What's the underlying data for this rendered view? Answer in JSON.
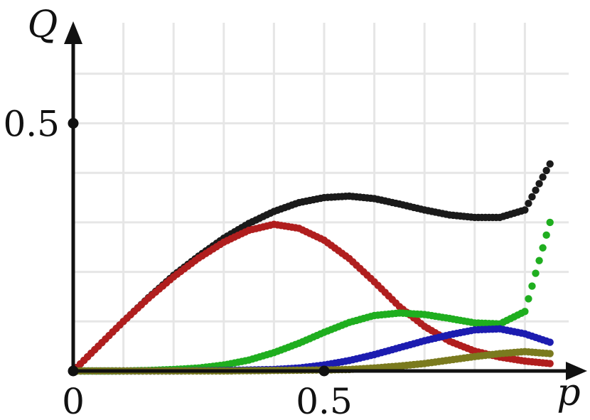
{
  "chart_data": {
    "type": "scatter",
    "title": "",
    "xlabel": "p",
    "ylabel": "Q",
    "xlim": [
      0,
      1
    ],
    "ylim": [
      0,
      0.65
    ],
    "grid": true,
    "x_ticks": [
      {
        "value": 0,
        "label": "0"
      },
      {
        "value": 0.5,
        "label": "0.5"
      }
    ],
    "y_ticks": [
      {
        "value": 0.5,
        "label": "0.5"
      }
    ],
    "x_grid_step": 0.1,
    "y_grid_step": 0.1,
    "x_range_shown": [
      0,
      0.95
    ],
    "series": [
      {
        "color": "#1a1a1a",
        "points": [
          [
            0,
            0
          ],
          [
            0.05,
            0.05
          ],
          [
            0.1,
            0.1
          ],
          [
            0.15,
            0.148
          ],
          [
            0.2,
            0.193
          ],
          [
            0.25,
            0.232
          ],
          [
            0.3,
            0.268
          ],
          [
            0.35,
            0.298
          ],
          [
            0.4,
            0.322
          ],
          [
            0.45,
            0.34
          ],
          [
            0.5,
            0.35
          ],
          [
            0.55,
            0.353
          ],
          [
            0.6,
            0.348
          ],
          [
            0.65,
            0.337
          ],
          [
            0.7,
            0.325
          ],
          [
            0.75,
            0.315
          ],
          [
            0.8,
            0.31
          ],
          [
            0.85,
            0.31
          ],
          [
            0.9,
            0.325
          ],
          [
            0.95,
            0.418
          ]
        ]
      },
      {
        "color": "#b01e1e",
        "points": [
          [
            0,
            0
          ],
          [
            0.05,
            0.05
          ],
          [
            0.1,
            0.1
          ],
          [
            0.15,
            0.147
          ],
          [
            0.2,
            0.19
          ],
          [
            0.25,
            0.228
          ],
          [
            0.3,
            0.26
          ],
          [
            0.35,
            0.284
          ],
          [
            0.4,
            0.296
          ],
          [
            0.45,
            0.288
          ],
          [
            0.5,
            0.264
          ],
          [
            0.55,
            0.227
          ],
          [
            0.6,
            0.18
          ],
          [
            0.65,
            0.13
          ],
          [
            0.7,
            0.09
          ],
          [
            0.75,
            0.06
          ],
          [
            0.8,
            0.04
          ],
          [
            0.85,
            0.028
          ],
          [
            0.9,
            0.02
          ],
          [
            0.95,
            0.015
          ]
        ]
      },
      {
        "color": "#1fae1f",
        "points": [
          [
            0,
            0
          ],
          [
            0.05,
            0
          ],
          [
            0.1,
            0
          ],
          [
            0.15,
            0.001
          ],
          [
            0.2,
            0.003
          ],
          [
            0.25,
            0.006
          ],
          [
            0.3,
            0.012
          ],
          [
            0.35,
            0.022
          ],
          [
            0.4,
            0.037
          ],
          [
            0.45,
            0.056
          ],
          [
            0.5,
            0.078
          ],
          [
            0.55,
            0.098
          ],
          [
            0.6,
            0.112
          ],
          [
            0.65,
            0.117
          ],
          [
            0.7,
            0.114
          ],
          [
            0.75,
            0.106
          ],
          [
            0.8,
            0.097
          ],
          [
            0.85,
            0.095
          ],
          [
            0.9,
            0.12
          ],
          [
            0.95,
            0.3
          ]
        ]
      },
      {
        "color": "#1c1cb0",
        "points": [
          [
            0,
            0
          ],
          [
            0.1,
            0
          ],
          [
            0.2,
            0
          ],
          [
            0.3,
            0.001
          ],
          [
            0.4,
            0.003
          ],
          [
            0.45,
            0.006
          ],
          [
            0.5,
            0.012
          ],
          [
            0.55,
            0.021
          ],
          [
            0.6,
            0.033
          ],
          [
            0.65,
            0.047
          ],
          [
            0.7,
            0.061
          ],
          [
            0.75,
            0.073
          ],
          [
            0.8,
            0.083
          ],
          [
            0.85,
            0.085
          ],
          [
            0.9,
            0.075
          ],
          [
            0.95,
            0.058
          ]
        ]
      },
      {
        "color": "#7a7a1f",
        "points": [
          [
            0,
            0
          ],
          [
            0.1,
            0
          ],
          [
            0.2,
            0
          ],
          [
            0.3,
            0
          ],
          [
            0.4,
            0.001
          ],
          [
            0.5,
            0.002
          ],
          [
            0.55,
            0.003
          ],
          [
            0.6,
            0.006
          ],
          [
            0.65,
            0.01
          ],
          [
            0.7,
            0.015
          ],
          [
            0.75,
            0.022
          ],
          [
            0.8,
            0.029
          ],
          [
            0.85,
            0.035
          ],
          [
            0.9,
            0.039
          ],
          [
            0.95,
            0.035
          ]
        ]
      }
    ]
  }
}
